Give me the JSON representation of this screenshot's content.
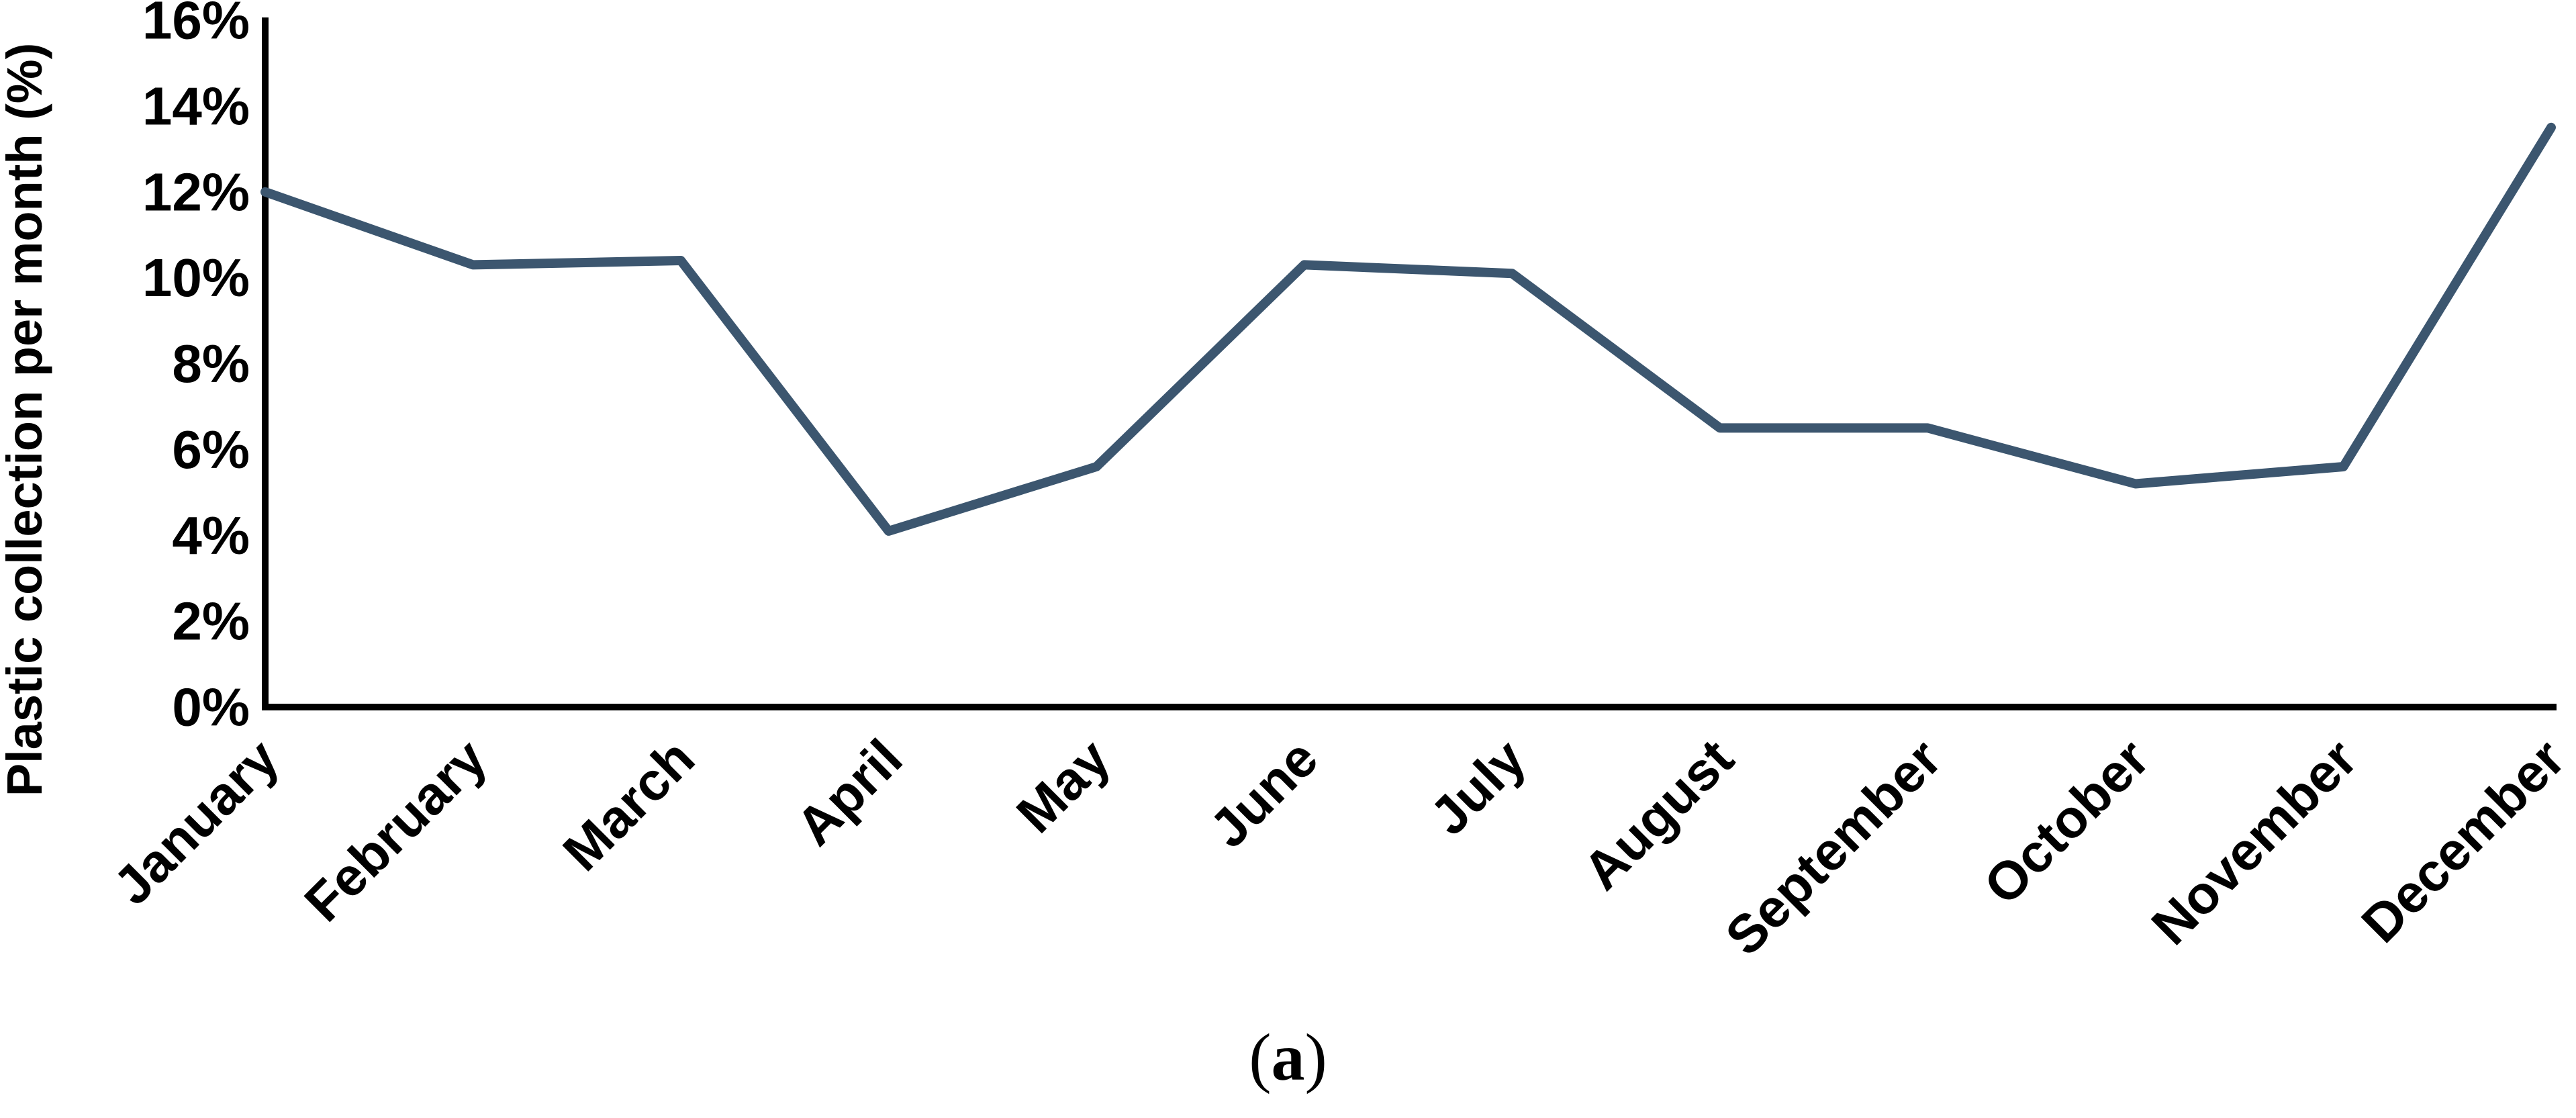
{
  "figure": {
    "caption": {
      "prefix": "(",
      "letter": "a",
      "suffix": ")"
    }
  },
  "chart_data": {
    "type": "line",
    "title": "",
    "xlabel": "",
    "ylabel": "Plastic collection per month (%)",
    "categories": [
      "January",
      "February",
      "March",
      "April",
      "May",
      "June",
      "July",
      "August",
      "September",
      "October",
      "November",
      "December"
    ],
    "series": [
      {
        "name": "Plastic collection per month",
        "values": [
          12.0,
          10.3,
          10.4,
          4.1,
          5.6,
          10.3,
          10.1,
          6.5,
          6.5,
          5.2,
          5.6,
          13.5
        ]
      }
    ],
    "unit": "%",
    "ylim": [
      0,
      16
    ],
    "y_tick_step": 2,
    "y_tick_labels": [
      "0%",
      "2%",
      "4%",
      "6%",
      "8%",
      "10%",
      "12%",
      "14%",
      "16%"
    ],
    "x_label_rotation_deg": 45,
    "grid": false,
    "legend": "none",
    "line_color": "#3c566f",
    "axis_color": "#000000",
    "text_color": "#000000"
  }
}
